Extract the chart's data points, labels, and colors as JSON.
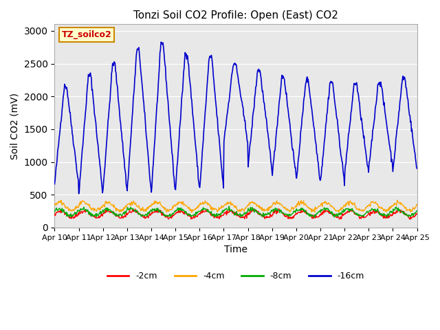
{
  "title": "Tonzi Soil CO2 Profile: Open (East) CO2",
  "ylabel": "Soil CO2 (mV)",
  "xlabel": "Time",
  "xlim_days": [
    0,
    15
  ],
  "ylim": [
    0,
    3100
  ],
  "yticks": [
    0,
    500,
    1000,
    1500,
    2000,
    2500,
    3000
  ],
  "x_tick_labels": [
    "Apr 10",
    "Apr 11",
    "Apr 12",
    "Apr 13",
    "Apr 14",
    "Apr 15",
    "Apr 16",
    "Apr 17",
    "Apr 18",
    "Apr 19",
    "Apr 20",
    "Apr 21",
    "Apr 22",
    "Apr 23",
    "Apr 24",
    "Apr 25"
  ],
  "bg_color": "#e8e8e8",
  "fig_bg": "#ffffff",
  "colors": {
    "2cm": "#ff0000",
    "4cm": "#ffa500",
    "8cm": "#00aa00",
    "16cm": "#0000cc"
  },
  "legend_labels": [
    "-2cm",
    "-4cm",
    "-8cm",
    "-16cm"
  ],
  "watermark_text": "TZ_soilco2",
  "watermark_bg": "#ffffcc",
  "watermark_border": "#cc8800"
}
